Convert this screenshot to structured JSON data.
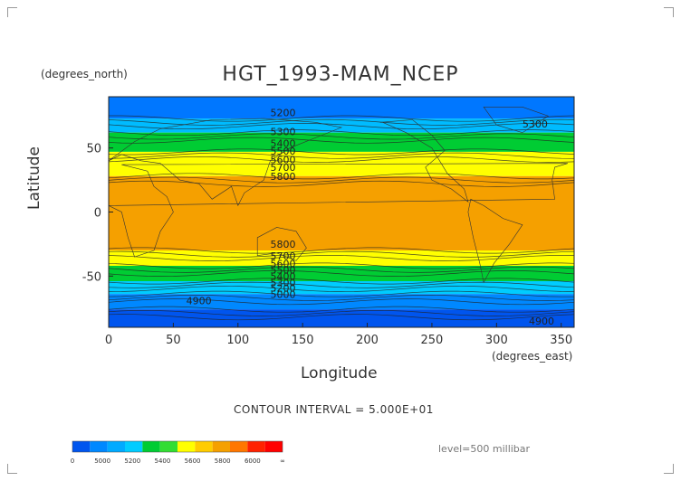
{
  "header": {
    "title": "HGT_1993-MAM_NCEP",
    "y_unit": "(degrees_north)",
    "x_unit": "(degrees_east)",
    "xlabel": "Longitude",
    "ylabel": "Latitude"
  },
  "footer": {
    "contour_interval": "CONTOUR INTERVAL = 5.000E+01",
    "level": "level=500 millibar"
  },
  "chart_data": {
    "type": "heatmap",
    "title": "HGT_1993-MAM_NCEP",
    "xlabel": "Longitude",
    "ylabel": "Latitude",
    "xlim": [
      0,
      360
    ],
    "ylim": [
      -90,
      90
    ],
    "x_ticks": [
      0,
      50,
      100,
      150,
      200,
      250,
      300,
      350
    ],
    "y_ticks": [
      50,
      0,
      -50
    ],
    "bands": [
      {
        "lat_from": 90,
        "lat_to": 73,
        "color": "#0077ff"
      },
      {
        "lat_from": 73,
        "lat_to": 62,
        "color": "#00bbff"
      },
      {
        "lat_from": 62,
        "lat_to": 47,
        "color": "#00cc33"
      },
      {
        "lat_from": 47,
        "lat_to": 28,
        "color": "#ffff00"
      },
      {
        "lat_from": 28,
        "lat_to": -30,
        "color": "#f5a000"
      },
      {
        "lat_from": -30,
        "lat_to": -42,
        "color": "#ffff00"
      },
      {
        "lat_from": -42,
        "lat_to": -54,
        "color": "#00cc33"
      },
      {
        "lat_from": -54,
        "lat_to": -64,
        "color": "#00ccff"
      },
      {
        "lat_from": -64,
        "lat_to": -76,
        "color": "#0088ff"
      },
      {
        "lat_from": -76,
        "lat_to": -90,
        "color": "#0055ee"
      }
    ],
    "contour_labels": [
      {
        "text": "5200",
        "lon": 125,
        "lat": 75
      },
      {
        "text": "5300",
        "lon": 125,
        "lat": 60
      },
      {
        "text": "5300",
        "lon": 320,
        "lat": 66
      },
      {
        "text": "5400",
        "lon": 125,
        "lat": 51
      },
      {
        "text": "5500",
        "lon": 125,
        "lat": 45
      },
      {
        "text": "5600",
        "lon": 125,
        "lat": 38
      },
      {
        "text": "5700",
        "lon": 125,
        "lat": 32
      },
      {
        "text": "5800",
        "lon": 125,
        "lat": 25
      },
      {
        "text": "5800",
        "lon": 125,
        "lat": -28
      },
      {
        "text": "5700",
        "lon": 125,
        "lat": -37
      },
      {
        "text": "5600",
        "lon": 125,
        "lat": -43
      },
      {
        "text": "5500",
        "lon": 125,
        "lat": -48
      },
      {
        "text": "5400",
        "lon": 125,
        "lat": -53
      },
      {
        "text": "5300",
        "lon": 125,
        "lat": -58
      },
      {
        "text": "5200",
        "lon": 125,
        "lat": -62
      },
      {
        "text": "5000",
        "lon": 125,
        "lat": -67
      },
      {
        "text": "4900",
        "lon": 60,
        "lat": -72
      },
      {
        "text": "4900",
        "lon": 325,
        "lat": -88
      }
    ],
    "colorbar": {
      "colors": [
        "#0055ee",
        "#0088ff",
        "#00aaff",
        "#00ccff",
        "#00cc33",
        "#33dd33",
        "#ffff00",
        "#ffcc00",
        "#f5a000",
        "#ff7700",
        "#ff2200",
        "#ff0000"
      ],
      "labels": [
        "0",
        "5000",
        "5200",
        "5400",
        "5600",
        "5800",
        "6000",
        "∞"
      ]
    }
  }
}
